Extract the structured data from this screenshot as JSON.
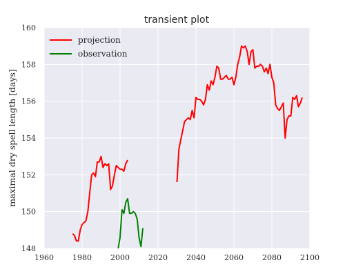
{
  "chart_data": {
    "type": "line",
    "title": "transient plot",
    "xlabel": "",
    "ylabel": "maximal dry spell length [days]",
    "xlim": [
      1960,
      2100
    ],
    "ylim": [
      148,
      160
    ],
    "xticks": [
      "1960",
      "1980",
      "2000",
      "2020",
      "2040",
      "2060",
      "2080",
      "2100"
    ],
    "yticks": [
      "148",
      "150",
      "152",
      "154",
      "156",
      "158",
      "160"
    ],
    "grid": true,
    "legend_position": "top-left",
    "series": [
      {
        "name": "projection",
        "color": "#ff0000",
        "segments": [
          {
            "x": [
              1975,
              1976,
              1977,
              1978,
              1979,
              1980,
              1981,
              1982,
              1983,
              1984,
              1985,
              1986,
              1987,
              1988,
              1989,
              1990,
              1991,
              1992,
              1993,
              1994,
              1995,
              1996,
              1997,
              1998,
              1999,
              2000,
              2001,
              2002,
              2003,
              2004
            ],
            "y": [
              148.8,
              148.7,
              148.4,
              148.4,
              149.0,
              149.3,
              149.4,
              149.5,
              150.0,
              151.0,
              152.0,
              152.1,
              151.9,
              152.7,
              152.7,
              153.0,
              152.4,
              152.6,
              152.5,
              152.6,
              151.2,
              151.4,
              152.0,
              152.5,
              152.4,
              152.3,
              152.3,
              152.2,
              152.6,
              152.8
            ]
          },
          {
            "x": [
              2030,
              2031,
              2032,
              2033,
              2034,
              2035,
              2036,
              2037,
              2038,
              2039,
              2040,
              2041,
              2042,
              2043,
              2044,
              2045,
              2046,
              2047,
              2048,
              2049,
              2050,
              2051,
              2052,
              2053,
              2054,
              2055,
              2056,
              2057,
              2058,
              2059,
              2060,
              2061,
              2062,
              2063,
              2064,
              2065,
              2066,
              2067,
              2068,
              2069,
              2070,
              2071,
              2072,
              2073,
              2074,
              2075,
              2076,
              2077,
              2078,
              2079,
              2080,
              2081,
              2082,
              2083,
              2084,
              2085,
              2086,
              2087,
              2088,
              2089,
              2090,
              2091,
              2092,
              2093,
              2094,
              2095,
              2096
            ],
            "y": [
              151.6,
              153.4,
              153.9,
              154.4,
              154.9,
              155.0,
              155.1,
              155.0,
              155.5,
              155.1,
              156.2,
              156.1,
              156.1,
              156.0,
              155.8,
              156.1,
              156.9,
              156.6,
              157.1,
              156.9,
              157.3,
              157.9,
              157.8,
              157.2,
              157.2,
              157.3,
              157.4,
              157.2,
              157.2,
              157.3,
              156.9,
              157.3,
              158.0,
              158.4,
              159.0,
              158.9,
              159.0,
              158.7,
              158.0,
              158.7,
              158.8,
              157.8,
              157.9,
              157.9,
              158.0,
              157.9,
              157.6,
              157.8,
              157.5,
              158.0,
              157.3,
              157.0,
              155.8,
              155.6,
              155.5,
              155.7,
              155.9,
              154.0,
              155.0,
              155.2,
              155.2,
              156.2,
              156.1,
              156.3,
              155.7,
              155.9,
              156.2
            ]
          }
        ]
      },
      {
        "name": "observation",
        "color": "#008000",
        "segments": [
          {
            "x": [
              1999,
              2000,
              2001,
              2002,
              2003,
              2004,
              2005,
              2006,
              2007,
              2008,
              2009,
              2010,
              2011,
              2012
            ],
            "y": [
              148.0,
              148.6,
              150.1,
              149.9,
              150.5,
              150.7,
              149.9,
              149.9,
              150.0,
              149.9,
              149.6,
              148.6,
              148.1,
              149.1
            ]
          }
        ]
      }
    ]
  }
}
